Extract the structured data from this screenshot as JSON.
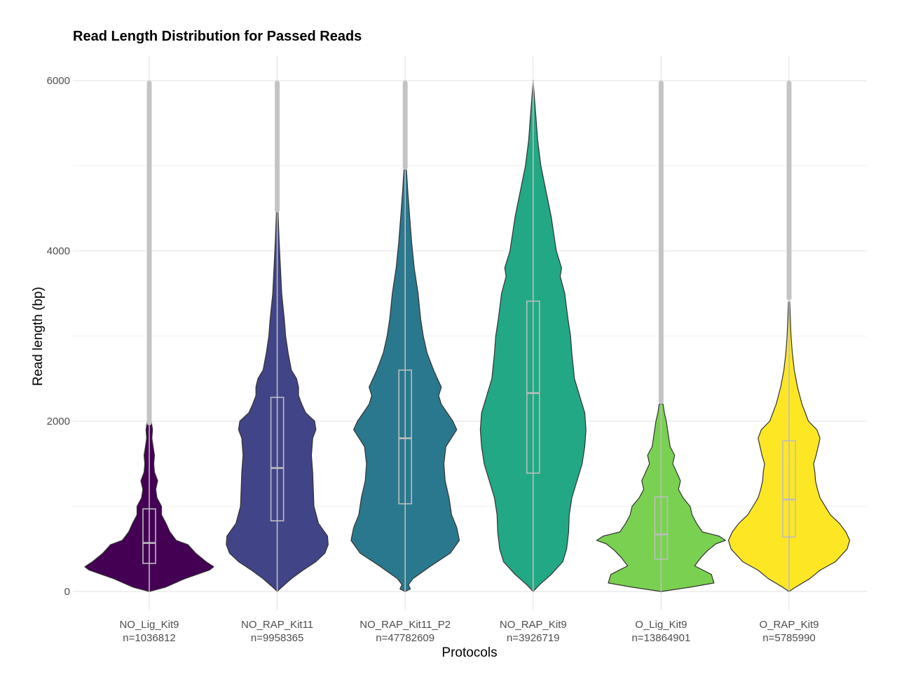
{
  "chart_data": {
    "type": "violin",
    "title": "Read Length Distribution for Passed Reads",
    "xlabel": "Protocols",
    "ylabel": "Read length (bp)",
    "ylim": [
      0,
      6000
    ],
    "yticks": [
      0,
      2000,
      4000,
      6000
    ],
    "y_tick_labels": [
      "0",
      "2000",
      "4000",
      "6000"
    ],
    "grid": true,
    "legend": "none",
    "groups": [
      {
        "name": "NO_Lig_Kit9",
        "n_label": "n=1036812",
        "color": "#440154",
        "q1": 330,
        "median": 570,
        "q3": 970,
        "whisker_low": 0,
        "whisker_high": 1950,
        "outliers_from": 1950,
        "max": 6000,
        "profile": [
          [
            0,
            0.0
          ],
          [
            50,
            0.25
          ],
          [
            150,
            0.55
          ],
          [
            250,
            0.93
          ],
          [
            290,
            1.0
          ],
          [
            350,
            0.88
          ],
          [
            450,
            0.72
          ],
          [
            550,
            0.6
          ],
          [
            600,
            0.42
          ],
          [
            700,
            0.32
          ],
          [
            800,
            0.26
          ],
          [
            900,
            0.19
          ],
          [
            1000,
            0.19
          ],
          [
            1100,
            0.12
          ],
          [
            1200,
            0.1
          ],
          [
            1300,
            0.13
          ],
          [
            1400,
            0.08
          ],
          [
            1500,
            0.07
          ],
          [
            1600,
            0.08
          ],
          [
            1700,
            0.06
          ],
          [
            1800,
            0.04
          ],
          [
            1900,
            0.05
          ],
          [
            2000,
            0.03
          ],
          [
            2100,
            0.015
          ],
          [
            2200,
            0.01
          ],
          [
            2400,
            0.005
          ]
        ]
      },
      {
        "name": "NO_RAP_Kit11",
        "n_label": "n=9958365",
        "color": "#414487",
        "q1": 830,
        "median": 1450,
        "q3": 2280,
        "whisker_low": 0,
        "whisker_high": 4450,
        "outliers_from": 4450,
        "max": 6000,
        "profile": [
          [
            0,
            0.0
          ],
          [
            50,
            0.07
          ],
          [
            150,
            0.22
          ],
          [
            250,
            0.4
          ],
          [
            350,
            0.6
          ],
          [
            450,
            0.74
          ],
          [
            550,
            0.79
          ],
          [
            650,
            0.78
          ],
          [
            800,
            0.64
          ],
          [
            1000,
            0.57
          ],
          [
            1200,
            0.56
          ],
          [
            1400,
            0.55
          ],
          [
            1600,
            0.53
          ],
          [
            1800,
            0.55
          ],
          [
            1900,
            0.6
          ],
          [
            2000,
            0.58
          ],
          [
            2100,
            0.44
          ],
          [
            2200,
            0.38
          ],
          [
            2300,
            0.33
          ],
          [
            2400,
            0.33
          ],
          [
            2500,
            0.3
          ],
          [
            2600,
            0.22
          ],
          [
            2800,
            0.17
          ],
          [
            3000,
            0.13
          ],
          [
            3200,
            0.11
          ],
          [
            3500,
            0.07
          ],
          [
            3800,
            0.05
          ],
          [
            4100,
            0.03
          ],
          [
            4400,
            0.015
          ],
          [
            4600,
            0.008
          ]
        ]
      },
      {
        "name": "NO_RAP_Kit11_P2",
        "n_label": "n=47782609",
        "color": "#2A788E",
        "q1": 1030,
        "median": 1800,
        "q3": 2600,
        "whisker_low": 0,
        "whisker_high": 4950,
        "outliers_from": 4950,
        "max": 6000,
        "profile": [
          [
            0,
            0.0
          ],
          [
            30,
            0.08
          ],
          [
            80,
            0.05
          ],
          [
            150,
            0.12
          ],
          [
            300,
            0.4
          ],
          [
            450,
            0.7
          ],
          [
            600,
            0.84
          ],
          [
            750,
            0.8
          ],
          [
            900,
            0.72
          ],
          [
            1100,
            0.68
          ],
          [
            1300,
            0.62
          ],
          [
            1500,
            0.6
          ],
          [
            1700,
            0.63
          ],
          [
            1900,
            0.8
          ],
          [
            2000,
            0.74
          ],
          [
            2200,
            0.56
          ],
          [
            2300,
            0.52
          ],
          [
            2400,
            0.56
          ],
          [
            2600,
            0.44
          ],
          [
            2800,
            0.34
          ],
          [
            3000,
            0.28
          ],
          [
            3200,
            0.24
          ],
          [
            3500,
            0.2
          ],
          [
            3800,
            0.14
          ],
          [
            4100,
            0.1
          ],
          [
            4400,
            0.07
          ],
          [
            4700,
            0.04
          ],
          [
            4950,
            0.02
          ]
        ]
      },
      {
        "name": "NO_RAP_Kit9",
        "n_label": "n=3926719",
        "color": "#22A884",
        "q1": 1390,
        "median": 2330,
        "q3": 3410,
        "whisker_low": 0,
        "whisker_high": 6000,
        "outliers_from": 6000,
        "max": 6000,
        "profile": [
          [
            0,
            0.0
          ],
          [
            80,
            0.1
          ],
          [
            200,
            0.28
          ],
          [
            350,
            0.46
          ],
          [
            500,
            0.52
          ],
          [
            700,
            0.55
          ],
          [
            900,
            0.56
          ],
          [
            1100,
            0.6
          ],
          [
            1300,
            0.68
          ],
          [
            1500,
            0.76
          ],
          [
            1700,
            0.8
          ],
          [
            1900,
            0.82
          ],
          [
            2100,
            0.8
          ],
          [
            2300,
            0.72
          ],
          [
            2500,
            0.64
          ],
          [
            2800,
            0.6
          ],
          [
            3000,
            0.58
          ],
          [
            3200,
            0.54
          ],
          [
            3500,
            0.49
          ],
          [
            3700,
            0.42
          ],
          [
            3800,
            0.44
          ],
          [
            4000,
            0.36
          ],
          [
            4200,
            0.32
          ],
          [
            4400,
            0.28
          ],
          [
            4700,
            0.2
          ],
          [
            5000,
            0.12
          ],
          [
            5300,
            0.07
          ],
          [
            5600,
            0.04
          ],
          [
            5800,
            0.02
          ],
          [
            6000,
            0.0
          ]
        ]
      },
      {
        "name": "O_Lig_Kit9",
        "n_label": "n=13864901",
        "color": "#7AD151",
        "q1": 380,
        "median": 670,
        "q3": 1110,
        "whisker_low": 0,
        "whisker_high": 2200,
        "outliers_from": 2200,
        "max": 6000,
        "profile": [
          [
            0,
            0.0
          ],
          [
            50,
            0.45
          ],
          [
            100,
            0.82
          ],
          [
            200,
            0.78
          ],
          [
            300,
            0.52
          ],
          [
            400,
            0.62
          ],
          [
            480,
            0.72
          ],
          [
            560,
            0.85
          ],
          [
            600,
            1.0
          ],
          [
            650,
            0.9
          ],
          [
            700,
            0.64
          ],
          [
            800,
            0.55
          ],
          [
            900,
            0.48
          ],
          [
            1000,
            0.45
          ],
          [
            1100,
            0.34
          ],
          [
            1200,
            0.27
          ],
          [
            1300,
            0.3
          ],
          [
            1400,
            0.24
          ],
          [
            1500,
            0.18
          ],
          [
            1600,
            0.21
          ],
          [
            1700,
            0.14
          ],
          [
            1800,
            0.12
          ],
          [
            1900,
            0.1
          ],
          [
            2000,
            0.08
          ],
          [
            2100,
            0.05
          ],
          [
            2200,
            0.03
          ]
        ]
      },
      {
        "name": "O_RAP_Kit9",
        "n_label": "n=5785990",
        "color": "#FDE725",
        "q1": 640,
        "median": 1080,
        "q3": 1770,
        "whisker_low": 0,
        "whisker_high": 3420,
        "outliers_from": 3420,
        "max": 6000,
        "profile": [
          [
            0,
            0.0
          ],
          [
            50,
            0.1
          ],
          [
            150,
            0.32
          ],
          [
            250,
            0.48
          ],
          [
            350,
            0.72
          ],
          [
            500,
            0.9
          ],
          [
            600,
            0.94
          ],
          [
            700,
            0.88
          ],
          [
            800,
            0.78
          ],
          [
            900,
            0.64
          ],
          [
            1000,
            0.56
          ],
          [
            1100,
            0.48
          ],
          [
            1200,
            0.44
          ],
          [
            1300,
            0.41
          ],
          [
            1400,
            0.4
          ],
          [
            1500,
            0.38
          ],
          [
            1600,
            0.42
          ],
          [
            1700,
            0.45
          ],
          [
            1800,
            0.48
          ],
          [
            1900,
            0.43
          ],
          [
            2000,
            0.3
          ],
          [
            2200,
            0.2
          ],
          [
            2400,
            0.13
          ],
          [
            2600,
            0.08
          ],
          [
            2800,
            0.05
          ],
          [
            3000,
            0.03
          ],
          [
            3200,
            0.02
          ],
          [
            3400,
            0.01
          ]
        ]
      }
    ]
  }
}
